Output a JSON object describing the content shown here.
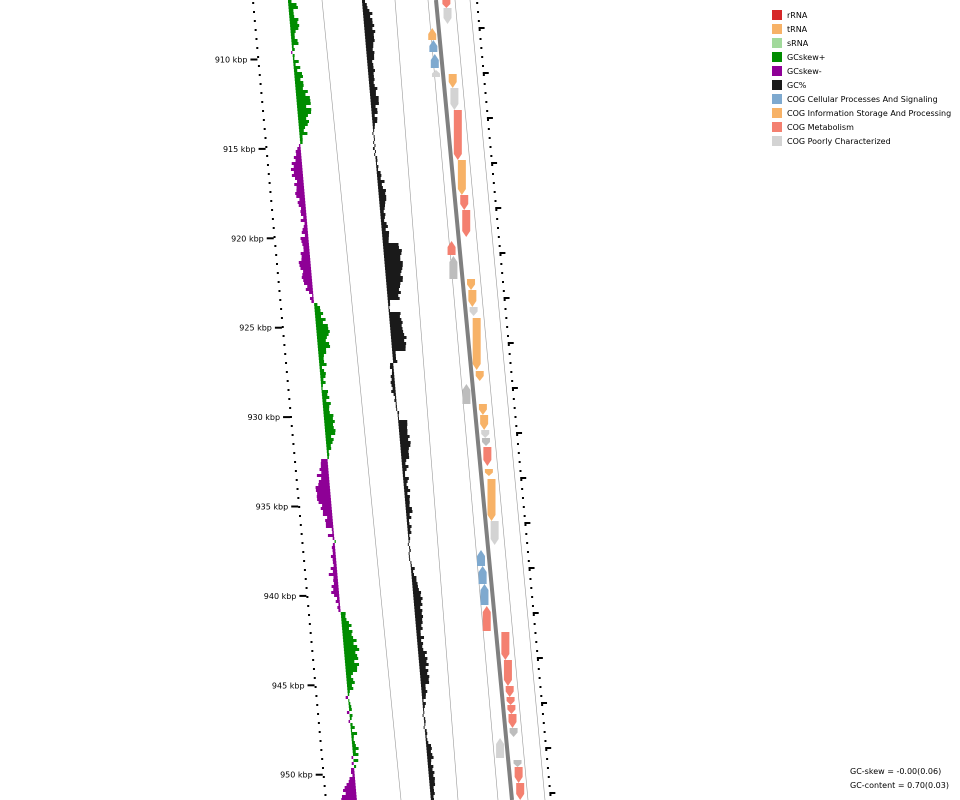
{
  "ruler": {
    "ticks": [
      "910 kbp",
      "915 kbp",
      "920 kbp",
      "925 kbp",
      "930 kbp",
      "935 kbp",
      "940 kbp",
      "945 kbp",
      "950 kbp"
    ]
  },
  "legend": [
    {
      "label": "rRNA",
      "color": "#d62728"
    },
    {
      "label": "tRNA",
      "color": "#f7b267"
    },
    {
      "label": "sRNA",
      "color": "#a1d99b"
    },
    {
      "label": "GCskew+",
      "color": "#008c00"
    },
    {
      "label": "GCskew-",
      "color": "#8e0096"
    },
    {
      "label": "GC%",
      "color": "#1a1a1a"
    },
    {
      "label": "COG Cellular Processes And Signaling",
      "color": "#7ea9cf"
    },
    {
      "label": "COG Information Storage And Processing",
      "color": "#f7b267"
    },
    {
      "label": "COG Metabolism",
      "color": "#f48070"
    },
    {
      "label": "COG Poorly Characterized",
      "color": "#d3d3d3"
    }
  ],
  "stats": {
    "gc_skew": "GC-skew = -0.00(0.06)",
    "gc_content": "GC-content = 0.70(0.03)"
  },
  "colors": {
    "skew_pos": "#008c00",
    "skew_neg": "#8e0096",
    "gc": "#1a1a1a",
    "cog_cellular": "#7ea9cf",
    "cog_info": "#f7b267",
    "cog_metab": "#f48070",
    "cog_poor": "#d3d3d3",
    "cog_poor_dark": "#bdbdbd",
    "backbone": "#808080"
  }
}
